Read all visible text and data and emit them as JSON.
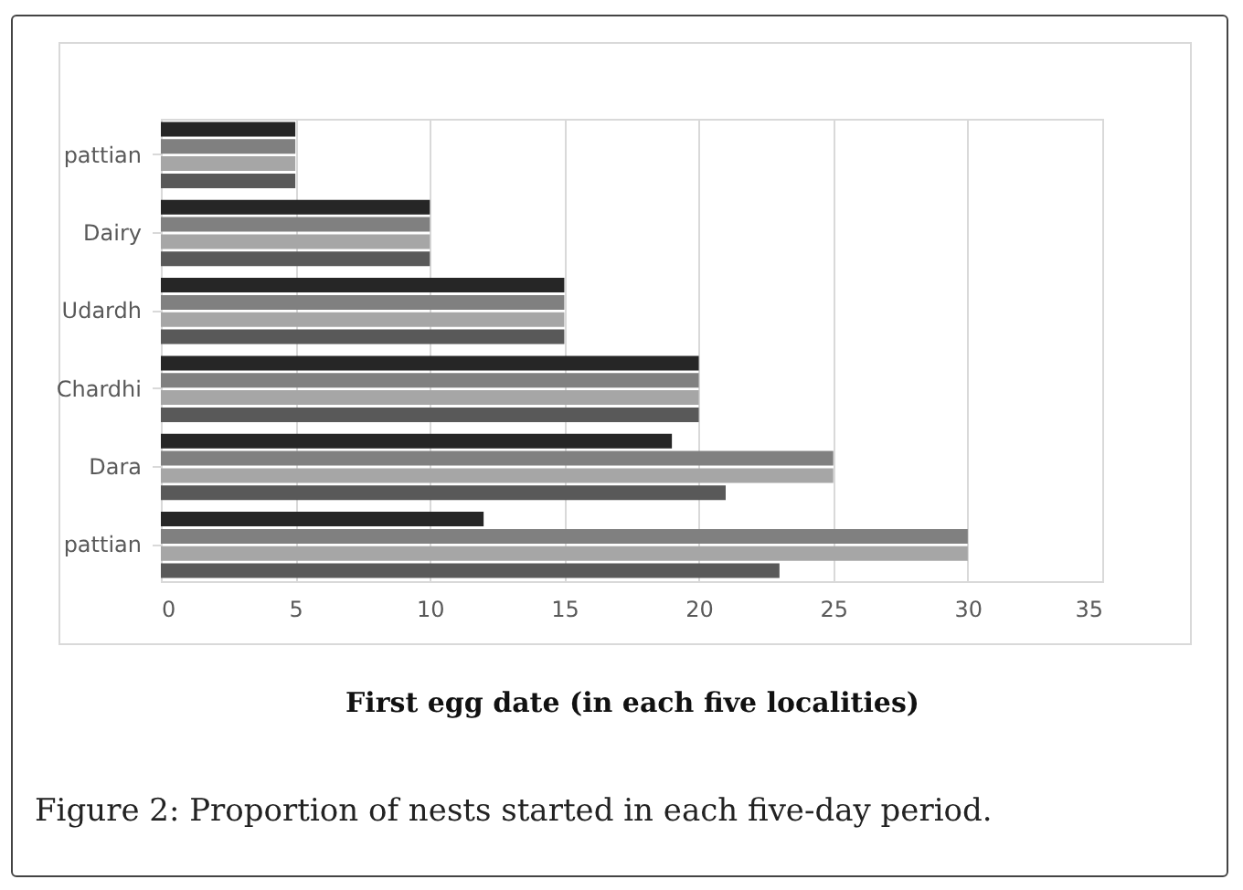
{
  "chart_data": {
    "type": "bar",
    "orientation": "horizontal",
    "categories": [
      "pattian",
      "Dairy",
      "Udardh",
      "Chardhi",
      "Dara",
      "pattian"
    ],
    "series": [
      {
        "color": "#262626",
        "values": [
          5,
          10,
          15,
          20,
          19,
          12
        ]
      },
      {
        "color": "#808080",
        "values": [
          5,
          10,
          15,
          20,
          25,
          30
        ]
      },
      {
        "color": "#a6a6a6",
        "values": [
          5,
          10,
          15,
          20,
          25,
          30
        ]
      },
      {
        "color": "#595959",
        "values": [
          5,
          10,
          15,
          20,
          21,
          23
        ]
      }
    ],
    "xlim": [
      0,
      35
    ],
    "xticks": [
      0,
      5,
      10,
      15,
      20,
      25,
      30,
      35
    ],
    "grid": "x",
    "legend": false,
    "xlabel": "First egg date (in each five localities)",
    "annotations": [
      "Figure 2: Proportion of nests started in each five-day period."
    ]
  }
}
